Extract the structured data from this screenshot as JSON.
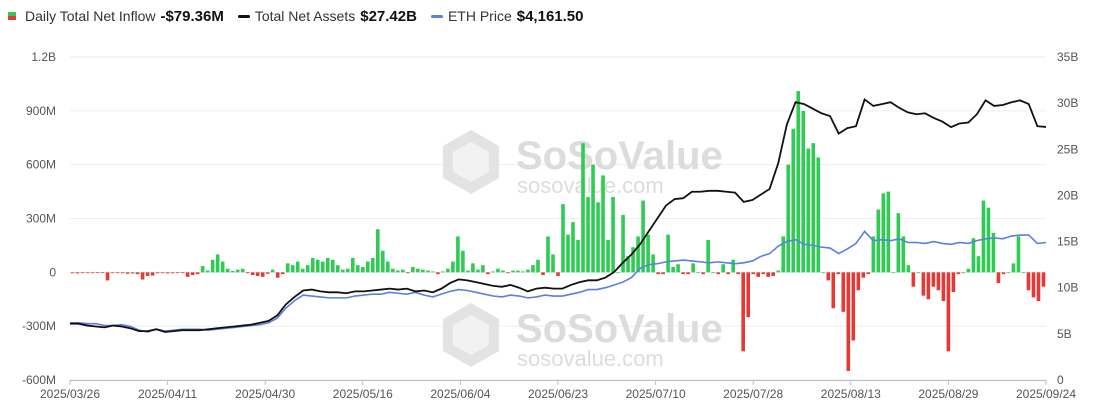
{
  "legend": {
    "flow_label": "Daily Total Net Inflow",
    "flow_value": "-$79.36M",
    "assets_label": "Total Net Assets",
    "assets_value": "$27.42B",
    "eth_label": "ETH Price",
    "eth_value": "$4,161.50"
  },
  "watermark": {
    "brand": "SoSoValue",
    "site": "sosovalue.com"
  },
  "colors": {
    "inflow": "#2ecc52",
    "outflow": "#e53935",
    "assets": "#111111",
    "eth": "#5b7fe0",
    "grid": "#eeeeee",
    "axis": "#bdbdbd"
  },
  "chart_data": {
    "type": "bar",
    "title": "",
    "grid": true,
    "legend_position": "top-left",
    "x_ticks": [
      "2025/03/26",
      "2025/04/11",
      "2025/04/30",
      "2025/05/16",
      "2025/06/04",
      "2025/06/23",
      "2025/07/10",
      "2025/07/28",
      "2025/08/13",
      "2025/08/29",
      "2025/09/24"
    ],
    "y_left": {
      "ticks": [
        "-600M",
        "-300M",
        "0",
        "300M",
        "600M",
        "900M",
        "1.2B"
      ],
      "ylim": [
        -600,
        1200
      ],
      "unit": "M"
    },
    "y_right": {
      "ticks": [
        "0",
        "5B",
        "10B",
        "15B",
        "20B",
        "25B",
        "30B",
        "35B"
      ],
      "ylim": [
        0,
        35
      ],
      "unit": "B"
    },
    "series": [
      {
        "name": "Daily Total Net Inflow",
        "kind": "bar",
        "axis": "left",
        "values": [
          -5,
          -6,
          -3,
          -4,
          -3,
          -2,
          -4,
          -45,
          -4,
          -3,
          -5,
          -8,
          -6,
          -10,
          -40,
          -20,
          -18,
          -5,
          -4,
          -6,
          -5,
          -4,
          -3,
          -25,
          -15,
          -10,
          35,
          10,
          70,
          100,
          60,
          20,
          8,
          15,
          20,
          -5,
          -15,
          -20,
          -25,
          -8,
          15,
          -30,
          -10,
          50,
          40,
          60,
          20,
          40,
          80,
          70,
          60,
          80,
          70,
          40,
          15,
          20,
          80,
          40,
          30,
          60,
          80,
          240,
          120,
          60,
          20,
          10,
          15,
          -5,
          30,
          20,
          15,
          10,
          5,
          -10,
          5,
          20,
          60,
          200,
          120,
          10,
          50,
          15,
          40,
          -10,
          5,
          20,
          10,
          -5,
          10,
          10,
          5,
          15,
          40,
          70,
          -15,
          200,
          100,
          -20,
          380,
          210,
          280,
          180,
          720,
          420,
          600,
          390,
          540,
          180,
          420,
          0,
          320,
          90,
          140,
          200,
          400,
          210,
          100,
          -10,
          -10,
          210,
          30,
          45,
          -10,
          -10,
          50,
          0,
          -10,
          180,
          0,
          -10,
          45,
          -10,
          70,
          -10,
          -440,
          -250,
          -10,
          -25,
          -10,
          -25,
          -20,
          10,
          200,
          600,
          800,
          1010,
          900,
          690,
          720,
          640,
          0,
          -45,
          -200,
          -10,
          -220,
          -550,
          -380,
          -100,
          -30,
          -10,
          200,
          350,
          440,
          450,
          0,
          330,
          200,
          40,
          -80,
          0,
          -130,
          -150,
          -80,
          -100,
          -160,
          -440,
          -110,
          -10,
          0,
          20,
          190,
          90,
          400,
          360,
          220,
          -60,
          -10,
          0,
          50,
          200,
          0,
          -100,
          -140,
          -160,
          -80
        ],
        "color_rule": "green if >= 0, red if < 0"
      },
      {
        "name": "Total Net Assets",
        "kind": "line",
        "axis": "right",
        "values": [
          6.1,
          6.1,
          5.9,
          5.8,
          5.7,
          5.9,
          5.8,
          5.6,
          5.3,
          5.3,
          5.5,
          5.2,
          5.3,
          5.4,
          5.4,
          5.4,
          5.5,
          5.6,
          5.7,
          5.8,
          5.9,
          6.0,
          6.2,
          6.4,
          7.0,
          8.2,
          9.0,
          9.7,
          9.8,
          9.6,
          9.5,
          9.5,
          9.4,
          9.6,
          9.6,
          9.7,
          9.8,
          9.9,
          9.8,
          9.9,
          9.6,
          9.7,
          9.5,
          9.9,
          10.5,
          10.9,
          10.8,
          10.6,
          10.4,
          10.2,
          10.1,
          10.3,
          10.0,
          9.6,
          9.9,
          10.0,
          9.9,
          9.9,
          10.3,
          10.6,
          10.8,
          10.8,
          11.1,
          11.7,
          12.7,
          13.6,
          14.7,
          16.1,
          17.5,
          18.9,
          19.6,
          19.7,
          20.4,
          20.4,
          20.5,
          20.5,
          20.4,
          20.3,
          19.3,
          19.5,
          20.1,
          20.7,
          23.5,
          27.7,
          30.1,
          29.9,
          29.4,
          28.9,
          28.6,
          26.7,
          27.3,
          27.5,
          30.4,
          29.7,
          29.9,
          30.1,
          29.5,
          29.0,
          28.8,
          28.9,
          28.4,
          28.0,
          27.4,
          27.8,
          27.9,
          28.8,
          30.3,
          29.7,
          29.8,
          30.1,
          30.3,
          29.9,
          27.5,
          27.42
        ]
      },
      {
        "name": "ETH Price",
        "kind": "line",
        "axis": "right",
        "values": [
          6.2,
          6.2,
          6.1,
          6.1,
          5.9,
          5.9,
          6.0,
          5.8,
          5.4,
          5.2,
          5.5,
          5.3,
          5.4,
          5.5,
          5.5,
          5.5,
          5.4,
          5.5,
          5.6,
          5.7,
          5.8,
          5.9,
          6.0,
          6.2,
          6.7,
          7.8,
          8.6,
          9.2,
          9.1,
          9.0,
          8.9,
          8.9,
          8.9,
          9.1,
          9.2,
          9.3,
          9.3,
          9.5,
          9.4,
          9.3,
          9.5,
          9.2,
          9.0,
          9.3,
          9.6,
          9.8,
          9.7,
          9.5,
          9.3,
          9.1,
          9.0,
          9.2,
          9.1,
          8.9,
          9.0,
          9.2,
          9.1,
          9.1,
          9.3,
          9.5,
          9.8,
          9.8,
          10.0,
          10.3,
          10.6,
          11.1,
          12.1,
          12.5,
          12.6,
          12.8,
          12.9,
          13.0,
          12.9,
          12.8,
          12.7,
          12.8,
          12.7,
          12.6,
          12.7,
          12.9,
          13.4,
          13.7,
          14.5,
          15.0,
          15.2,
          14.7,
          14.6,
          14.4,
          14.3,
          13.7,
          14.2,
          14.8,
          16.1,
          15.1,
          15.2,
          15.1,
          15.3,
          14.9,
          14.9,
          14.8,
          15.0,
          14.8,
          14.7,
          14.9,
          14.8,
          15.1,
          15.3,
          15.4,
          15.3,
          15.6,
          15.7,
          15.7,
          14.8,
          14.9
        ]
      }
    ]
  }
}
